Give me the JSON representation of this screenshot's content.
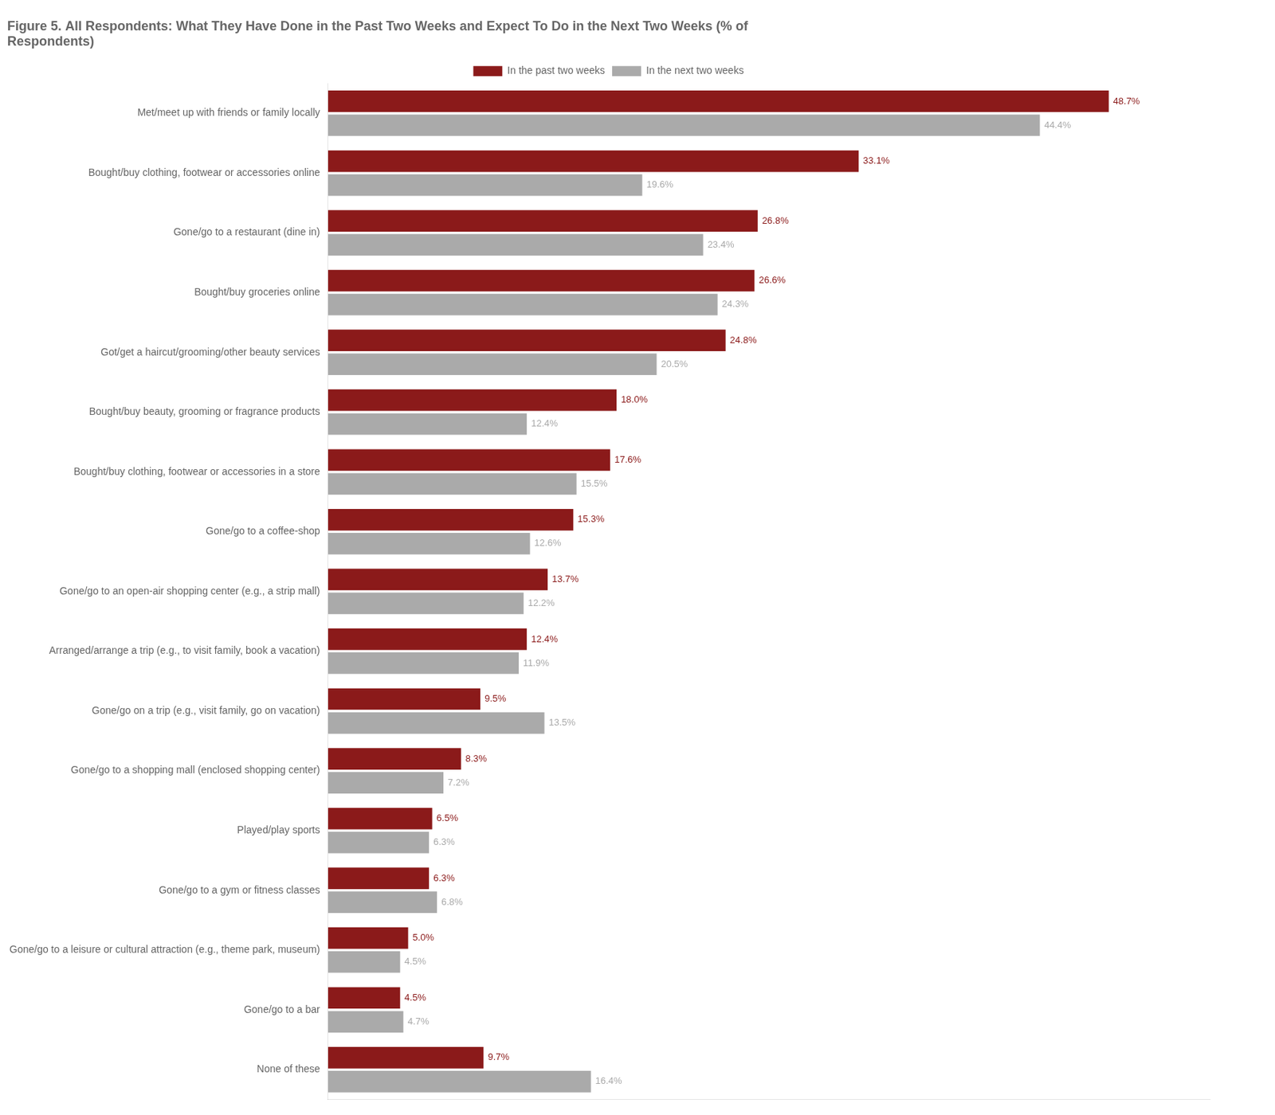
{
  "chart_data": {
    "type": "bar",
    "orientation": "horizontal",
    "title": "Figure 5. All Respondents: What They Have Done in the Past Two Weeks and Expect To Do in the Next Two Weeks (% of\nRespondents)",
    "categories": [
      "Met/meet up with friends or family locally",
      "Bought/buy clothing, footwear or accessories online",
      "Gone/go to a restaurant (dine in)",
      "Bought/buy groceries online",
      "Got/get a haircut/grooming/other beauty services",
      "Bought/buy beauty, grooming or fragrance products",
      "Bought/buy clothing, footwear or accessories in a store",
      "Gone/go to a coffee-shop",
      "Gone/go to an open-air shopping center (e.g., a strip mall)",
      "Arranged/arrange a trip (e.g., to visit family, book a vacation)",
      "Gone/go on a trip (e.g., visit family, go on vacation)",
      "Gone/go to a shopping mall (enclosed shopping center)",
      "Played/play sports",
      "Gone/go to a gym or fitness classes",
      "Gone/go to a leisure or cultural attraction (e.g., theme park, museum)",
      "Gone/go to a bar",
      "None of these"
    ],
    "series": [
      {
        "name": "In the past two weeks",
        "color": "#8B1A1A",
        "values": [
          48.7,
          33.1,
          26.8,
          26.6,
          24.8,
          18.0,
          17.6,
          15.3,
          13.7,
          12.4,
          9.5,
          8.3,
          6.5,
          6.3,
          5.0,
          4.5,
          9.7
        ],
        "value_labels": [
          "48.7%",
          "33.1%",
          "26.8%",
          "26.6%",
          "24.8%",
          "18.0%",
          "17.6%",
          "15.3%",
          "13.7%",
          "12.4%",
          "9.5%",
          "8.3%",
          "6.5%",
          "6.3%",
          "5.0%",
          "4.5%",
          "9.7%"
        ]
      },
      {
        "name": "In the next two weeks",
        "color": "#AAAAAA",
        "values": [
          44.4,
          19.6,
          23.4,
          24.3,
          20.5,
          12.4,
          15.5,
          12.6,
          12.2,
          11.9,
          13.5,
          7.2,
          6.3,
          6.8,
          4.5,
          4.7,
          16.4
        ],
        "value_labels": [
          "44.4%",
          "19.6%",
          "23.4%",
          "24.3%",
          "20.5%",
          "12.4%",
          "15.5%",
          "12.6%",
          "12.2%",
          "11.9%",
          "13.5%",
          "7.2%",
          "6.3%",
          "6.8%",
          "4.5%",
          "4.7%",
          "16.4%"
        ]
      }
    ],
    "xlim": [
      0,
      55
    ],
    "grid": false,
    "legend": "top",
    "data_labels": true,
    "tick_labels": "y"
  }
}
